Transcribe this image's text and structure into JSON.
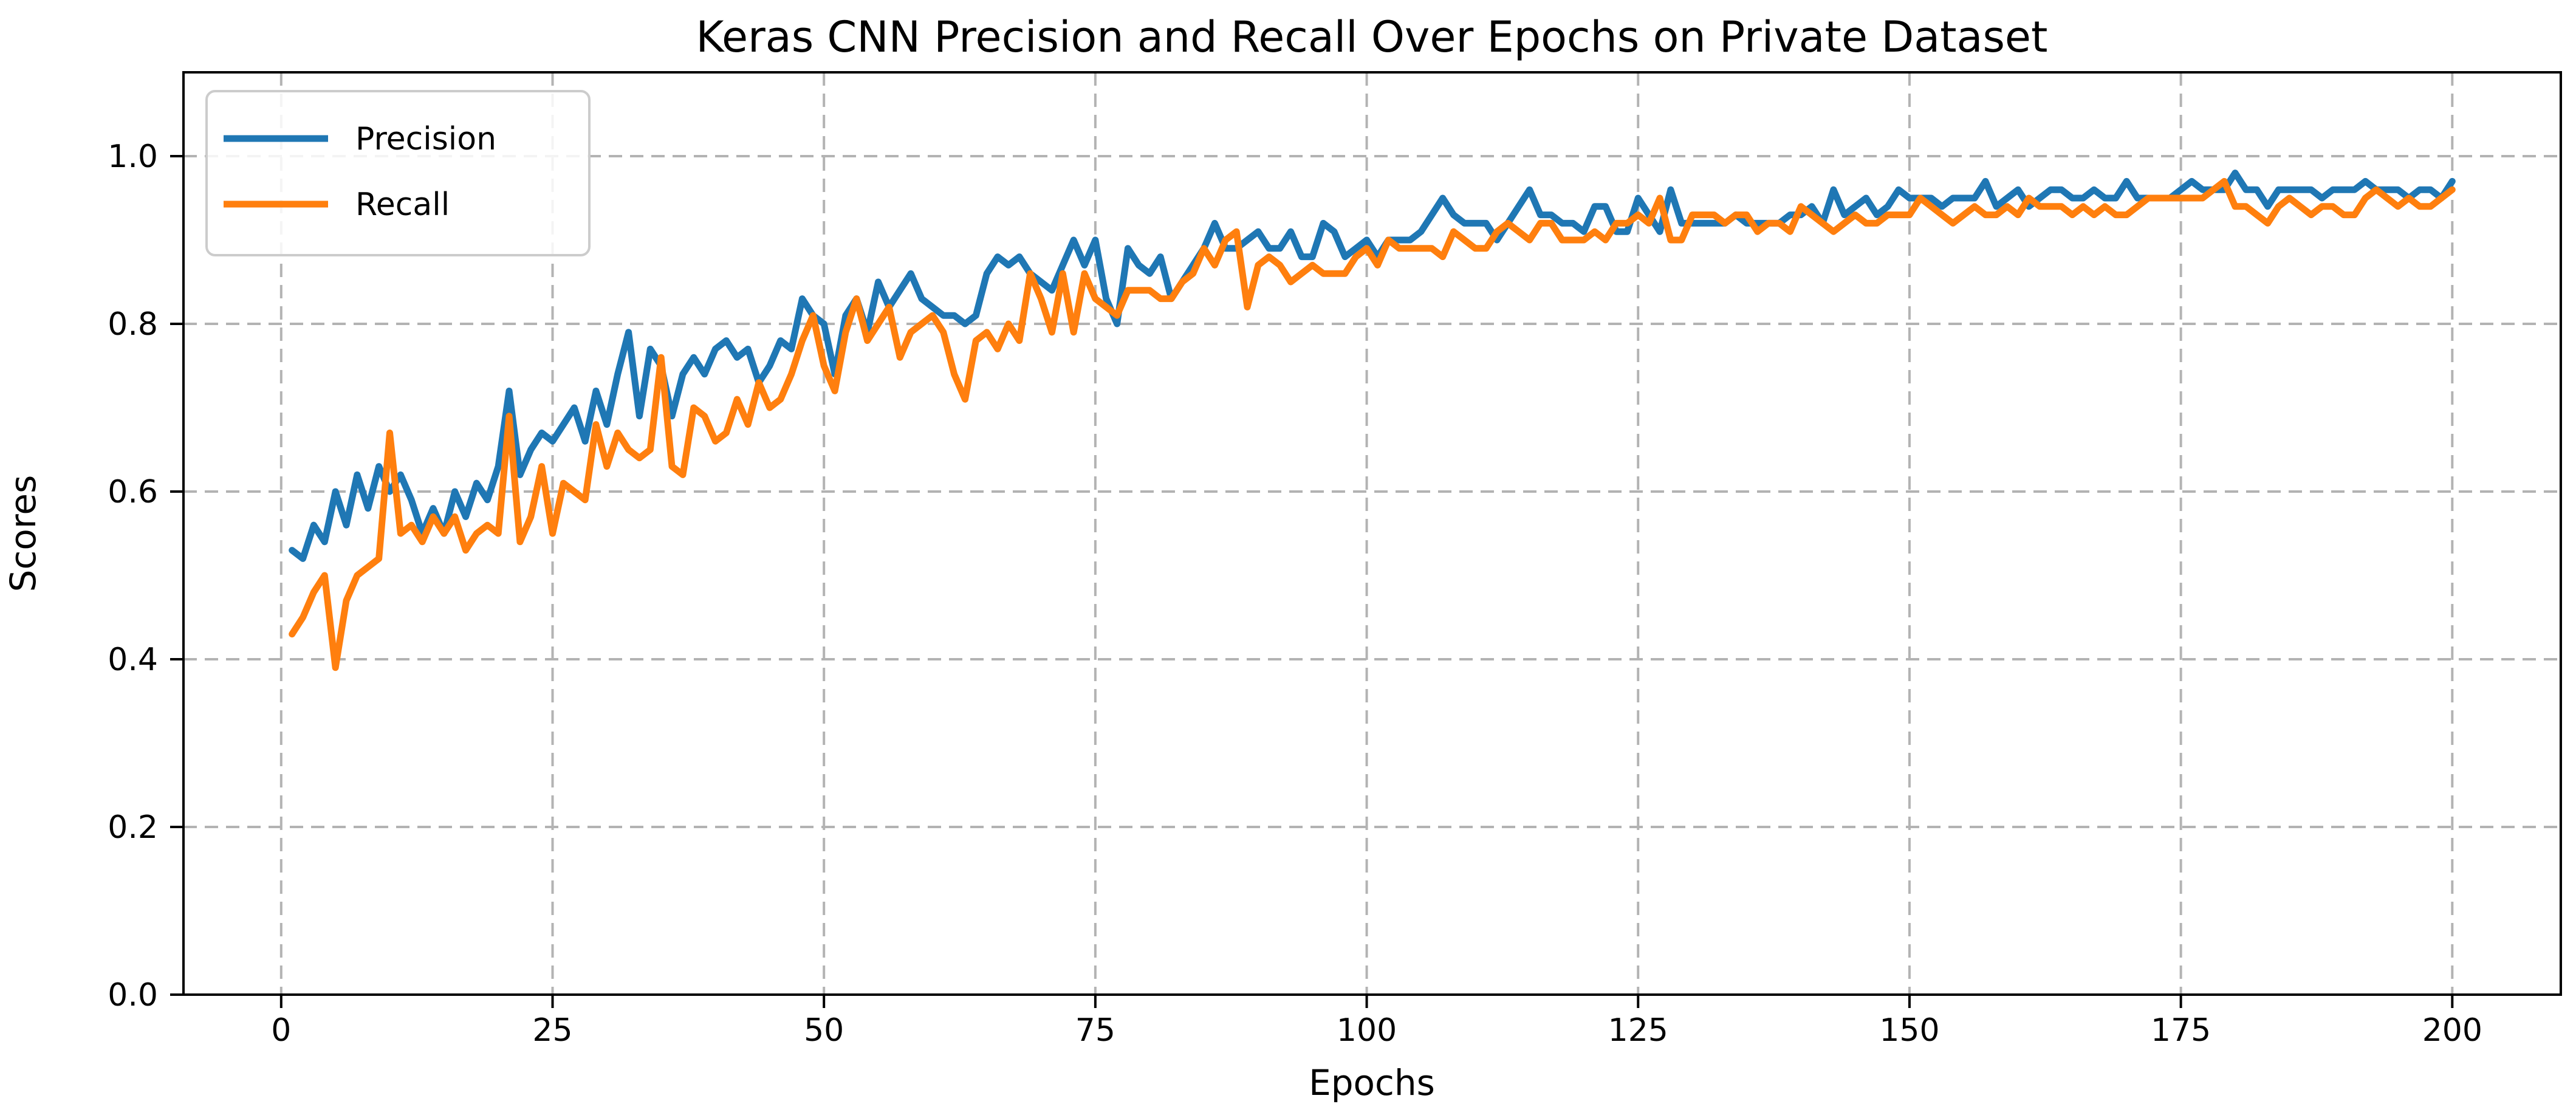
{
  "chart_data": {
    "type": "line",
    "title": "Keras CNN Precision and Recall Over Epochs on Private Dataset",
    "xlabel": "Epochs",
    "ylabel": "Scores",
    "xlim": [
      -9,
      210
    ],
    "ylim": [
      0.0,
      1.1
    ],
    "xticks": [
      "0",
      "25",
      "50",
      "75",
      "100",
      "125",
      "150",
      "175",
      "200"
    ],
    "xtick_values": [
      0,
      25,
      50,
      75,
      100,
      125,
      150,
      175,
      200
    ],
    "yticks": [
      "0.0",
      "0.2",
      "0.4",
      "0.6",
      "0.8",
      "1.0"
    ],
    "ytick_values": [
      0.0,
      0.2,
      0.4,
      0.6,
      0.8,
      1.0
    ],
    "grid": true,
    "legend_position": "upper left",
    "x": [
      1,
      2,
      3,
      4,
      5,
      6,
      7,
      8,
      9,
      10,
      11,
      12,
      13,
      14,
      15,
      16,
      17,
      18,
      19,
      20,
      21,
      22,
      23,
      24,
      25,
      26,
      27,
      28,
      29,
      30,
      31,
      32,
      33,
      34,
      35,
      36,
      37,
      38,
      39,
      40,
      41,
      42,
      43,
      44,
      45,
      46,
      47,
      48,
      49,
      50,
      51,
      52,
      53,
      54,
      55,
      56,
      57,
      58,
      59,
      60,
      61,
      62,
      63,
      64,
      65,
      66,
      67,
      68,
      69,
      70,
      71,
      72,
      73,
      74,
      75,
      76,
      77,
      78,
      79,
      80,
      81,
      82,
      83,
      84,
      85,
      86,
      87,
      88,
      89,
      90,
      91,
      92,
      93,
      94,
      95,
      96,
      97,
      98,
      99,
      100,
      101,
      102,
      103,
      104,
      105,
      106,
      107,
      108,
      109,
      110,
      111,
      112,
      113,
      114,
      115,
      116,
      117,
      118,
      119,
      120,
      121,
      122,
      123,
      124,
      125,
      126,
      127,
      128,
      129,
      130,
      131,
      132,
      133,
      134,
      135,
      136,
      137,
      138,
      139,
      140,
      141,
      142,
      143,
      144,
      145,
      146,
      147,
      148,
      149,
      150,
      151,
      152,
      153,
      154,
      155,
      156,
      157,
      158,
      159,
      160,
      161,
      162,
      163,
      164,
      165,
      166,
      167,
      168,
      169,
      170,
      171,
      172,
      173,
      174,
      175,
      176,
      177,
      178,
      179,
      180,
      181,
      182,
      183,
      184,
      185,
      186,
      187,
      188,
      189,
      190,
      191,
      192,
      193,
      194,
      195,
      196,
      197,
      198,
      199,
      200
    ],
    "series": [
      {
        "name": "Precision",
        "color": "#1f77b4",
        "values": [
          0.53,
          0.52,
          0.56,
          0.54,
          0.6,
          0.56,
          0.62,
          0.58,
          0.63,
          0.6,
          0.62,
          0.59,
          0.55,
          0.58,
          0.55,
          0.6,
          0.57,
          0.61,
          0.59,
          0.63,
          0.72,
          0.62,
          0.65,
          0.67,
          0.66,
          0.68,
          0.7,
          0.66,
          0.72,
          0.68,
          0.74,
          0.79,
          0.69,
          0.77,
          0.75,
          0.69,
          0.74,
          0.76,
          0.74,
          0.77,
          0.78,
          0.76,
          0.77,
          0.73,
          0.75,
          0.78,
          0.77,
          0.83,
          0.81,
          0.8,
          0.74,
          0.81,
          0.83,
          0.79,
          0.85,
          0.82,
          0.84,
          0.86,
          0.83,
          0.82,
          0.81,
          0.81,
          0.8,
          0.81,
          0.86,
          0.88,
          0.87,
          0.88,
          0.86,
          0.85,
          0.84,
          0.87,
          0.9,
          0.87,
          0.9,
          0.83,
          0.8,
          0.89,
          0.87,
          0.86,
          0.88,
          0.83,
          0.85,
          0.87,
          0.89,
          0.92,
          0.89,
          0.89,
          0.9,
          0.91,
          0.89,
          0.89,
          0.91,
          0.88,
          0.88,
          0.92,
          0.91,
          0.88,
          0.89,
          0.9,
          0.88,
          0.9,
          0.9,
          0.9,
          0.91,
          0.93,
          0.95,
          0.93,
          0.92,
          0.92,
          0.92,
          0.9,
          0.92,
          0.94,
          0.96,
          0.93,
          0.93,
          0.92,
          0.92,
          0.91,
          0.94,
          0.94,
          0.91,
          0.91,
          0.95,
          0.93,
          0.91,
          0.96,
          0.92,
          0.92,
          0.92,
          0.92,
          0.92,
          0.93,
          0.92,
          0.92,
          0.92,
          0.92,
          0.93,
          0.93,
          0.94,
          0.92,
          0.96,
          0.93,
          0.94,
          0.95,
          0.93,
          0.94,
          0.96,
          0.95,
          0.95,
          0.95,
          0.94,
          0.95,
          0.95,
          0.95,
          0.97,
          0.94,
          0.95,
          0.96,
          0.94,
          0.95,
          0.96,
          0.96,
          0.95,
          0.95,
          0.96,
          0.95,
          0.95,
          0.97,
          0.95,
          0.95,
          0.95,
          0.95,
          0.96,
          0.97,
          0.96,
          0.96,
          0.96,
          0.98,
          0.96,
          0.96,
          0.94,
          0.96,
          0.96,
          0.96,
          0.96,
          0.95,
          0.96,
          0.96,
          0.96,
          0.97,
          0.96,
          0.96,
          0.96,
          0.95,
          0.96,
          0.96,
          0.95,
          0.97
        ]
      },
      {
        "name": "Recall",
        "color": "#ff7f0e",
        "values": [
          0.43,
          0.45,
          0.48,
          0.5,
          0.39,
          0.47,
          0.5,
          0.51,
          0.52,
          0.67,
          0.55,
          0.56,
          0.54,
          0.57,
          0.55,
          0.57,
          0.53,
          0.55,
          0.56,
          0.55,
          0.69,
          0.54,
          0.57,
          0.63,
          0.55,
          0.61,
          0.6,
          0.59,
          0.68,
          0.63,
          0.67,
          0.65,
          0.64,
          0.65,
          0.76,
          0.63,
          0.62,
          0.7,
          0.69,
          0.66,
          0.67,
          0.71,
          0.68,
          0.73,
          0.7,
          0.71,
          0.74,
          0.78,
          0.81,
          0.75,
          0.72,
          0.79,
          0.83,
          0.78,
          0.8,
          0.82,
          0.76,
          0.79,
          0.8,
          0.81,
          0.79,
          0.74,
          0.71,
          0.78,
          0.79,
          0.77,
          0.8,
          0.78,
          0.86,
          0.83,
          0.79,
          0.86,
          0.79,
          0.86,
          0.83,
          0.82,
          0.81,
          0.84,
          0.84,
          0.84,
          0.83,
          0.83,
          0.85,
          0.86,
          0.89,
          0.87,
          0.9,
          0.91,
          0.82,
          0.87,
          0.88,
          0.87,
          0.85,
          0.86,
          0.87,
          0.86,
          0.86,
          0.86,
          0.88,
          0.89,
          0.87,
          0.9,
          0.89,
          0.89,
          0.89,
          0.89,
          0.88,
          0.91,
          0.9,
          0.89,
          0.89,
          0.91,
          0.92,
          0.91,
          0.9,
          0.92,
          0.92,
          0.9,
          0.9,
          0.9,
          0.91,
          0.9,
          0.92,
          0.92,
          0.93,
          0.92,
          0.95,
          0.9,
          0.9,
          0.93,
          0.93,
          0.93,
          0.92,
          0.93,
          0.93,
          0.91,
          0.92,
          0.92,
          0.91,
          0.94,
          0.93,
          0.92,
          0.91,
          0.92,
          0.93,
          0.92,
          0.92,
          0.93,
          0.93,
          0.93,
          0.95,
          0.94,
          0.93,
          0.92,
          0.93,
          0.94,
          0.93,
          0.93,
          0.94,
          0.93,
          0.95,
          0.94,
          0.94,
          0.94,
          0.93,
          0.94,
          0.93,
          0.94,
          0.93,
          0.93,
          0.94,
          0.95,
          0.95,
          0.95,
          0.95,
          0.95,
          0.95,
          0.96,
          0.97,
          0.94,
          0.94,
          0.93,
          0.92,
          0.94,
          0.95,
          0.94,
          0.93,
          0.94,
          0.94,
          0.93,
          0.93,
          0.95,
          0.96,
          0.95,
          0.94,
          0.95,
          0.94,
          0.94,
          0.95,
          0.96
        ]
      }
    ],
    "colors": {
      "grid": "#b3b3b3",
      "spine": "#000000",
      "text": "#000000",
      "legend_border": "#cccccc",
      "legend_background": "#ffffff",
      "plot_background": "#ffffff"
    }
  }
}
